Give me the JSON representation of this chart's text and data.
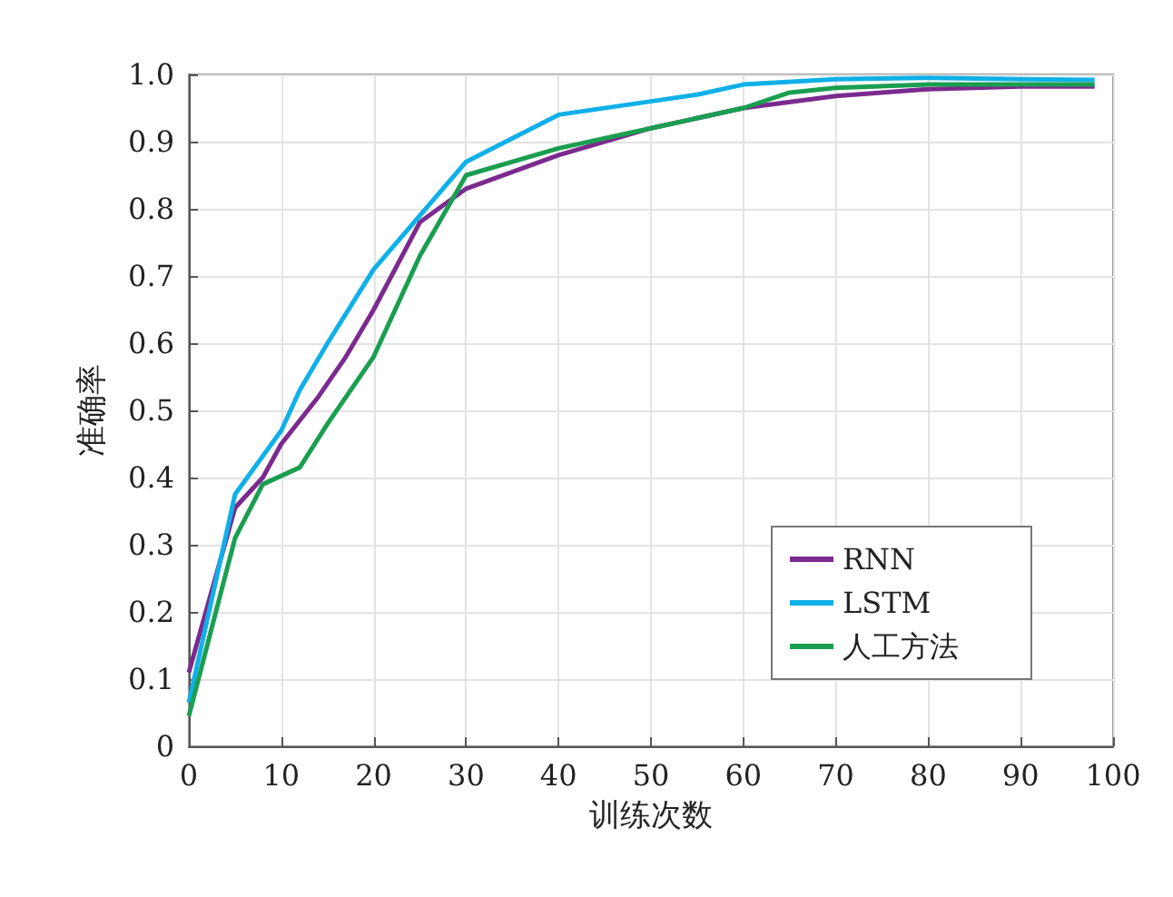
{
  "chart_data": {
    "type": "line",
    "xlabel": "训练次数",
    "ylabel": "准确率",
    "xlim": [
      0,
      100
    ],
    "xticks": [
      0,
      10,
      20,
      30,
      40,
      50,
      60,
      70,
      80,
      90,
      100
    ],
    "ylim": [
      0,
      1
    ],
    "yticks": [
      0,
      0.1,
      0.2,
      0.3,
      0.4,
      0.5,
      0.6,
      0.7,
      0.8,
      0.9,
      {
        "value": 1,
        "label": "1.0"
      }
    ],
    "grid": true,
    "legend": "bottom right",
    "marker": "none",
    "line_style": "solid",
    "series": [
      {
        "name": "RNN",
        "color": "#7b2a8e",
        "x": [
          0,
          5,
          8,
          10,
          14,
          17,
          20,
          25,
          30,
          40,
          50,
          60,
          70,
          80,
          90,
          98
        ],
        "values": [
          0.11,
          0.355,
          0.4,
          0.45,
          0.52,
          0.58,
          0.65,
          0.78,
          0.83,
          0.88,
          0.92,
          0.95,
          0.968,
          0.978,
          0.982,
          0.982
        ]
      },
      {
        "name": "LSTM",
        "color": "#10b0e8",
        "x": [
          0,
          5,
          10,
          12,
          15,
          20,
          25,
          30,
          40,
          50,
          55,
          60,
          70,
          80,
          90,
          98
        ],
        "values": [
          0.065,
          0.375,
          0.47,
          0.53,
          0.6,
          0.71,
          0.79,
          0.87,
          0.94,
          0.96,
          0.97,
          0.985,
          0.993,
          0.995,
          0.993,
          0.992
        ]
      },
      {
        "name": "人工方法",
        "color": "#1a9e50",
        "x": [
          0,
          5,
          8,
          12,
          15,
          20,
          25,
          30,
          40,
          50,
          60,
          65,
          70,
          80,
          90,
          98
        ],
        "values": [
          0.045,
          0.31,
          0.39,
          0.415,
          0.48,
          0.58,
          0.73,
          0.85,
          0.89,
          0.92,
          0.95,
          0.973,
          0.98,
          0.985,
          0.985,
          0.985
        ]
      }
    ]
  }
}
